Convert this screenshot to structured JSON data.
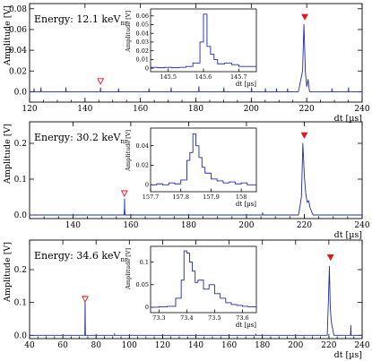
{
  "chart_data": [
    {
      "type": "line",
      "energy_label": "Energy: 12.1 keV",
      "energy_subscript": "nr",
      "ylabel": "Amplitude [V]",
      "xlabel": "dt [µs]",
      "xlim": [
        120,
        240
      ],
      "ylim": [
        -0.01,
        0.085
      ],
      "xticks": [
        120,
        140,
        160,
        180,
        200,
        220,
        240
      ],
      "xtick_labels": [
        "120",
        "140",
        "160",
        "180",
        "200",
        "220",
        "240"
      ],
      "yticks": [
        0,
        0.02,
        0.04,
        0.06,
        0.08
      ],
      "ytick_labels": [
        "0.0",
        "0.02",
        "0.04",
        "0.06",
        "0.08"
      ],
      "series": [
        {
          "x": [
            120,
            121.5,
            121.6,
            121.7,
            124,
            124.1,
            124.2,
            133,
            133.1,
            133.2,
            145.5,
            145.6,
            145.7,
            152,
            152.1,
            152.2,
            163,
            163.1,
            163.2,
            171,
            171.1,
            171.2,
            181,
            181.1,
            181.2,
            190,
            190.1,
            190.2,
            200,
            200.1,
            200.2,
            205,
            205.1,
            205.2,
            209,
            209.1,
            209.2,
            213,
            213.1,
            213.2,
            217,
            218.5,
            219,
            219.5,
            220,
            220.5,
            221,
            223,
            229,
            229.1,
            229.2,
            235,
            235.1,
            235.2,
            240
          ],
          "y": [
            0,
            0,
            0.003,
            0,
            0,
            0.004,
            0,
            0,
            0.004,
            0,
            0,
            0.004,
            0,
            0,
            0.003,
            0,
            0,
            0.003,
            0,
            0,
            0.004,
            0,
            0,
            0.005,
            0,
            0,
            0.004,
            0,
            0,
            0.004,
            0,
            0,
            0.003,
            0,
            0,
            0.003,
            0,
            0,
            0.003,
            0,
            0,
            0.02,
            0.065,
            0.02,
            0.005,
            0.012,
            0,
            0,
            0,
            0.003,
            0,
            0,
            0.004,
            0,
            0
          ]
        }
      ],
      "markers": [
        {
          "kind": "filled",
          "x": 219.3,
          "y": 0.072
        },
        {
          "kind": "open",
          "x": 145.6,
          "y": 0.01
        }
      ],
      "inset": {
        "xlabel": "dt [µs]",
        "ylabel": "Amplitude [V]",
        "xlim": [
          145.45,
          145.75
        ],
        "ylim": [
          -0.004,
          0.068
        ],
        "xticks": [
          145.5,
          145.6,
          145.7
        ],
        "xtick_labels": [
          "145.5",
          "145.6",
          "145.7"
        ],
        "yticks": [
          0,
          0.01,
          0.02,
          0.03,
          0.04,
          0.05,
          0.06
        ],
        "ytick_labels": [
          "0",
          "0.01",
          "0.02",
          "0.03",
          "0.04",
          "0.05",
          "0.06"
        ],
        "step_x": [
          145.45,
          145.47,
          145.49,
          145.51,
          145.53,
          145.55,
          145.57,
          145.59,
          145.6,
          145.61,
          145.62,
          145.63,
          145.64,
          145.66,
          145.68,
          145.7,
          145.72,
          145.75
        ],
        "step_y": [
          0.001,
          0.0005,
          0.001,
          0.0005,
          0.001,
          0.002,
          0.006,
          0.03,
          0.062,
          0.025,
          0.016,
          0.01,
          0.005,
          0.006,
          0.004,
          0.002,
          0.002,
          0.001
        ]
      }
    },
    {
      "type": "line",
      "energy_label": "Energy: 30.2 keV",
      "energy_subscript": "nr",
      "ylabel": "Amplitude [V]",
      "xlabel": "dt [µs]",
      "xlim": [
        125,
        240
      ],
      "ylim": [
        -0.01,
        0.26
      ],
      "xticks": [
        140,
        160,
        180,
        200,
        220,
        240
      ],
      "xtick_labels": [
        "140",
        "160",
        "180",
        "200",
        "220",
        "240"
      ],
      "yticks": [
        0,
        0.1,
        0.2
      ],
      "ytick_labels": [
        "0.0",
        "0.1",
        "0.2"
      ],
      "series": [
        {
          "x": [
            125,
            157.7,
            157.8,
            157.85,
            157.9,
            158,
            205.5,
            205.6,
            205.7,
            218,
            219,
            219.5,
            220,
            220.5,
            221,
            221.5,
            222,
            222.5,
            223,
            240
          ],
          "y": [
            0,
            0,
            0.02,
            0.045,
            0.02,
            0,
            0,
            0.006,
            0,
            0,
            0.05,
            0.2,
            0.11,
            0.06,
            0.035,
            0.04,
            0.02,
            0.01,
            0,
            0
          ]
        }
      ],
      "markers": [
        {
          "kind": "filled",
          "x": 220,
          "y": 0.222
        },
        {
          "kind": "open",
          "x": 157.8,
          "y": 0.06
        }
      ],
      "inset": {
        "xlabel": "dt [µs]",
        "ylabel": "Amplitude [V]",
        "xlim": [
          157.7,
          158.05
        ],
        "ylim": [
          -0.007,
          0.058
        ],
        "xticks": [
          157.7,
          157.8,
          157.9,
          158
        ],
        "xtick_labels": [
          "157.7",
          "157.8",
          "157.9",
          "158"
        ],
        "yticks": [
          0,
          0.02,
          0.04
        ],
        "ytick_labels": [
          "0",
          "0.02",
          "0.04"
        ],
        "step_x": [
          157.7,
          157.72,
          157.74,
          157.76,
          157.78,
          157.8,
          157.82,
          157.83,
          157.84,
          157.85,
          157.86,
          157.87,
          157.88,
          157.9,
          157.92,
          157.94,
          157.96,
          157.98,
          158,
          158.02,
          158.05
        ],
        "step_y": [
          0,
          0.001,
          0,
          0.002,
          0.001,
          0.005,
          0.025,
          0.033,
          0.052,
          0.04,
          0.028,
          0.018,
          0.012,
          0.006,
          0.004,
          0.002,
          0.003,
          0.001,
          0.002,
          0.0,
          0.001
        ]
      }
    },
    {
      "type": "line",
      "energy_label": "Energy: 34.6 keV",
      "energy_subscript": "nr",
      "ylabel": "Amplitude [V]",
      "xlabel": "dt [µs]",
      "xlim": [
        40,
        240
      ],
      "ylim": [
        -0.01,
        0.29
      ],
      "xticks": [
        40,
        60,
        80,
        100,
        120,
        140,
        160,
        180,
        200,
        220,
        240
      ],
      "xtick_labels": [
        "40",
        "60",
        "80",
        "100",
        "120",
        "140",
        "160",
        "180",
        "200",
        "220",
        "240"
      ],
      "yticks": [
        0,
        0.1,
        0.2
      ],
      "ytick_labels": [
        "0.0",
        "0.1",
        "0.2"
      ],
      "series": [
        {
          "x": [
            40,
            73.2,
            73.3,
            73.4,
            73.5,
            73.6,
            91,
            91.1,
            91.2,
            176,
            176.1,
            176.2,
            219,
            219.8,
            220.3,
            220.8,
            221.3,
            221.8,
            222.3,
            223,
            233,
            233.2,
            233.4,
            240
          ],
          "y": [
            0,
            0,
            0.03,
            0.12,
            0.04,
            0,
            0,
            0.005,
            0,
            0,
            0.004,
            0,
            0,
            0.12,
            0.21,
            0.09,
            0.05,
            0.03,
            0.02,
            0,
            0,
            0.03,
            0,
            0
          ]
        }
      ],
      "markers": [
        {
          "kind": "filled",
          "x": 221,
          "y": 0.237
        },
        {
          "kind": "open",
          "x": 73.4,
          "y": 0.11
        }
      ],
      "inset": {
        "xlabel": "dt [µs]",
        "ylabel": "Amplitude [V]",
        "xlim": [
          73.27,
          73.65
        ],
        "ylim": [
          -0.012,
          0.135
        ],
        "xticks": [
          73.3,
          73.4,
          73.5,
          73.6
        ],
        "xtick_labels": [
          "73.3",
          "73.4",
          "73.5",
          "73.6"
        ],
        "yticks": [
          0,
          0.05,
          0.1
        ],
        "ytick_labels": [
          "0",
          "0.05",
          "0.1"
        ],
        "step_x": [
          73.27,
          73.3,
          73.33,
          73.36,
          73.38,
          73.39,
          73.4,
          73.41,
          73.42,
          73.43,
          73.44,
          73.46,
          73.48,
          73.5,
          73.52,
          73.54,
          73.56,
          73.58,
          73.6,
          73.62,
          73.65
        ],
        "step_y": [
          0,
          0.001,
          0.002,
          0.02,
          0.06,
          0.125,
          0.12,
          0.1,
          0.08,
          0.055,
          0.06,
          0.04,
          0.05,
          0.03,
          0.02,
          0.01,
          0.006,
          0.004,
          0.002,
          0.001,
          0
        ]
      }
    }
  ]
}
